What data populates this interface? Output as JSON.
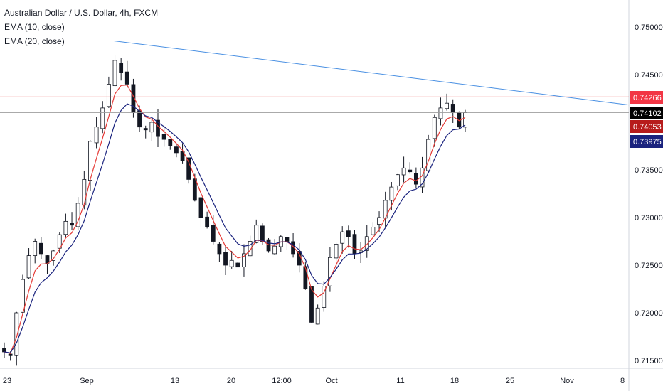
{
  "legend": {
    "symbol_line": "Australian Dollar / U.S. Dollar, 4h, FXCM",
    "ema10": "EMA (10, close)",
    "ema20": "EMA (20, close)"
  },
  "colors": {
    "candle": "#131722",
    "ema10": "#e53935",
    "ema20": "#1a237e",
    "trendline": "#4a90e2",
    "hline": "#e53935",
    "current_line": "#9e9e9e",
    "tag_current": "#000000",
    "tag_ema10": "#b71c1c",
    "tag_ema20": "#1a237e",
    "tag_hline": "#f23645"
  },
  "chart_data": {
    "type": "candlestick",
    "title": "Australian Dollar / U.S. Dollar, 4h, FXCM",
    "y_ticks": [
      "0.75000",
      "0.74500",
      "0.73500",
      "0.73000",
      "0.72500",
      "0.72000",
      "0.71500"
    ],
    "y_tick_values": [
      0.75,
      0.745,
      0.735,
      0.73,
      0.725,
      0.72,
      0.715
    ],
    "x_ticks": [
      "23",
      "Sep",
      "13",
      "20",
      "12:00",
      "Oct",
      "11",
      "18",
      "25",
      "Nov",
      "8"
    ],
    "price_tags": [
      {
        "label": "0.74266",
        "value": 0.74266,
        "kind": "hline"
      },
      {
        "label": "0.74102",
        "value": 0.74102,
        "kind": "current"
      },
      {
        "label": "0.74053",
        "value": 0.74053,
        "kind": "ema10"
      },
      {
        "label": "0.73975",
        "value": 0.73975,
        "kind": "ema20"
      }
    ],
    "horizontal_line": 0.74266,
    "trendline": {
      "start_value": 0.7478,
      "end_value": 0.741
    },
    "close_path": [
      0.7159,
      0.7155,
      0.72,
      0.7235,
      0.726,
      0.7275,
      0.7262,
      0.7252,
      0.7265,
      0.7282,
      0.7296,
      0.7292,
      0.7315,
      0.734,
      0.738,
      0.7395,
      0.7415,
      0.744,
      0.7465,
      0.7452,
      0.744,
      0.741,
      0.7395,
      0.7392,
      0.74,
      0.7385,
      0.7382,
      0.7375,
      0.7368,
      0.736,
      0.734,
      0.7318,
      0.73,
      0.729,
      0.7275,
      0.7262,
      0.725,
      0.7255,
      0.7248,
      0.7262,
      0.7275,
      0.7292,
      0.7275,
      0.7265,
      0.727,
      0.728,
      0.7275,
      0.7262,
      0.725,
      0.7225,
      0.719,
      0.7205,
      0.7228,
      0.7258,
      0.7272,
      0.7285,
      0.728,
      0.7262,
      0.7265,
      0.728,
      0.729,
      0.73,
      0.7318,
      0.7332,
      0.7345,
      0.7352,
      0.7348,
      0.7335,
      0.7352,
      0.7382,
      0.7405,
      0.7415,
      0.742,
      0.741,
      0.7395,
      0.741
    ]
  }
}
